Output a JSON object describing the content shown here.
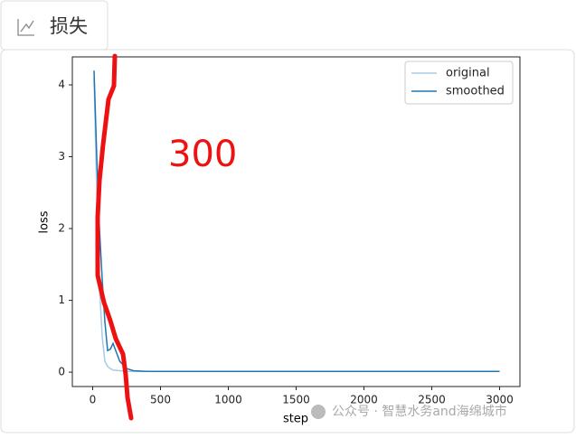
{
  "tab": {
    "title": "损失"
  },
  "chart_data": {
    "type": "line",
    "xlabel": "step",
    "ylabel": "loss",
    "x": [
      10,
      30,
      50,
      70,
      90,
      110,
      130,
      150,
      200,
      250,
      300,
      400,
      600,
      1000,
      1500,
      2000,
      2500,
      3000
    ],
    "series": [
      {
        "name": "original",
        "color": "#a6cbe3",
        "values": [
          4.1,
          2.5,
          1.2,
          0.5,
          0.15,
          0.08,
          0.05,
          0.03,
          0.02,
          0.01,
          0.01,
          0.01,
          0.01,
          0.01,
          0.01,
          0.01,
          0.01,
          0.01
        ]
      },
      {
        "name": "smoothed",
        "color": "#1f77b4",
        "values": [
          4.2,
          3.0,
          2.0,
          1.3,
          0.7,
          0.3,
          0.32,
          0.4,
          0.15,
          0.05,
          0.02,
          0.01,
          0.01,
          0.01,
          0.01,
          0.01,
          0.01,
          0.01
        ]
      }
    ],
    "xlim": [
      -150,
      3150
    ],
    "ylim": [
      -0.2,
      4.39
    ],
    "xticks": [
      0,
      500,
      1000,
      1500,
      2000,
      2500,
      3000
    ],
    "yticks": [
      0,
      1,
      2,
      3,
      4
    ],
    "legend": "upper right",
    "annotation": "300"
  },
  "watermark": {
    "text": "公众号 · 智慧水务and海绵城市"
  }
}
